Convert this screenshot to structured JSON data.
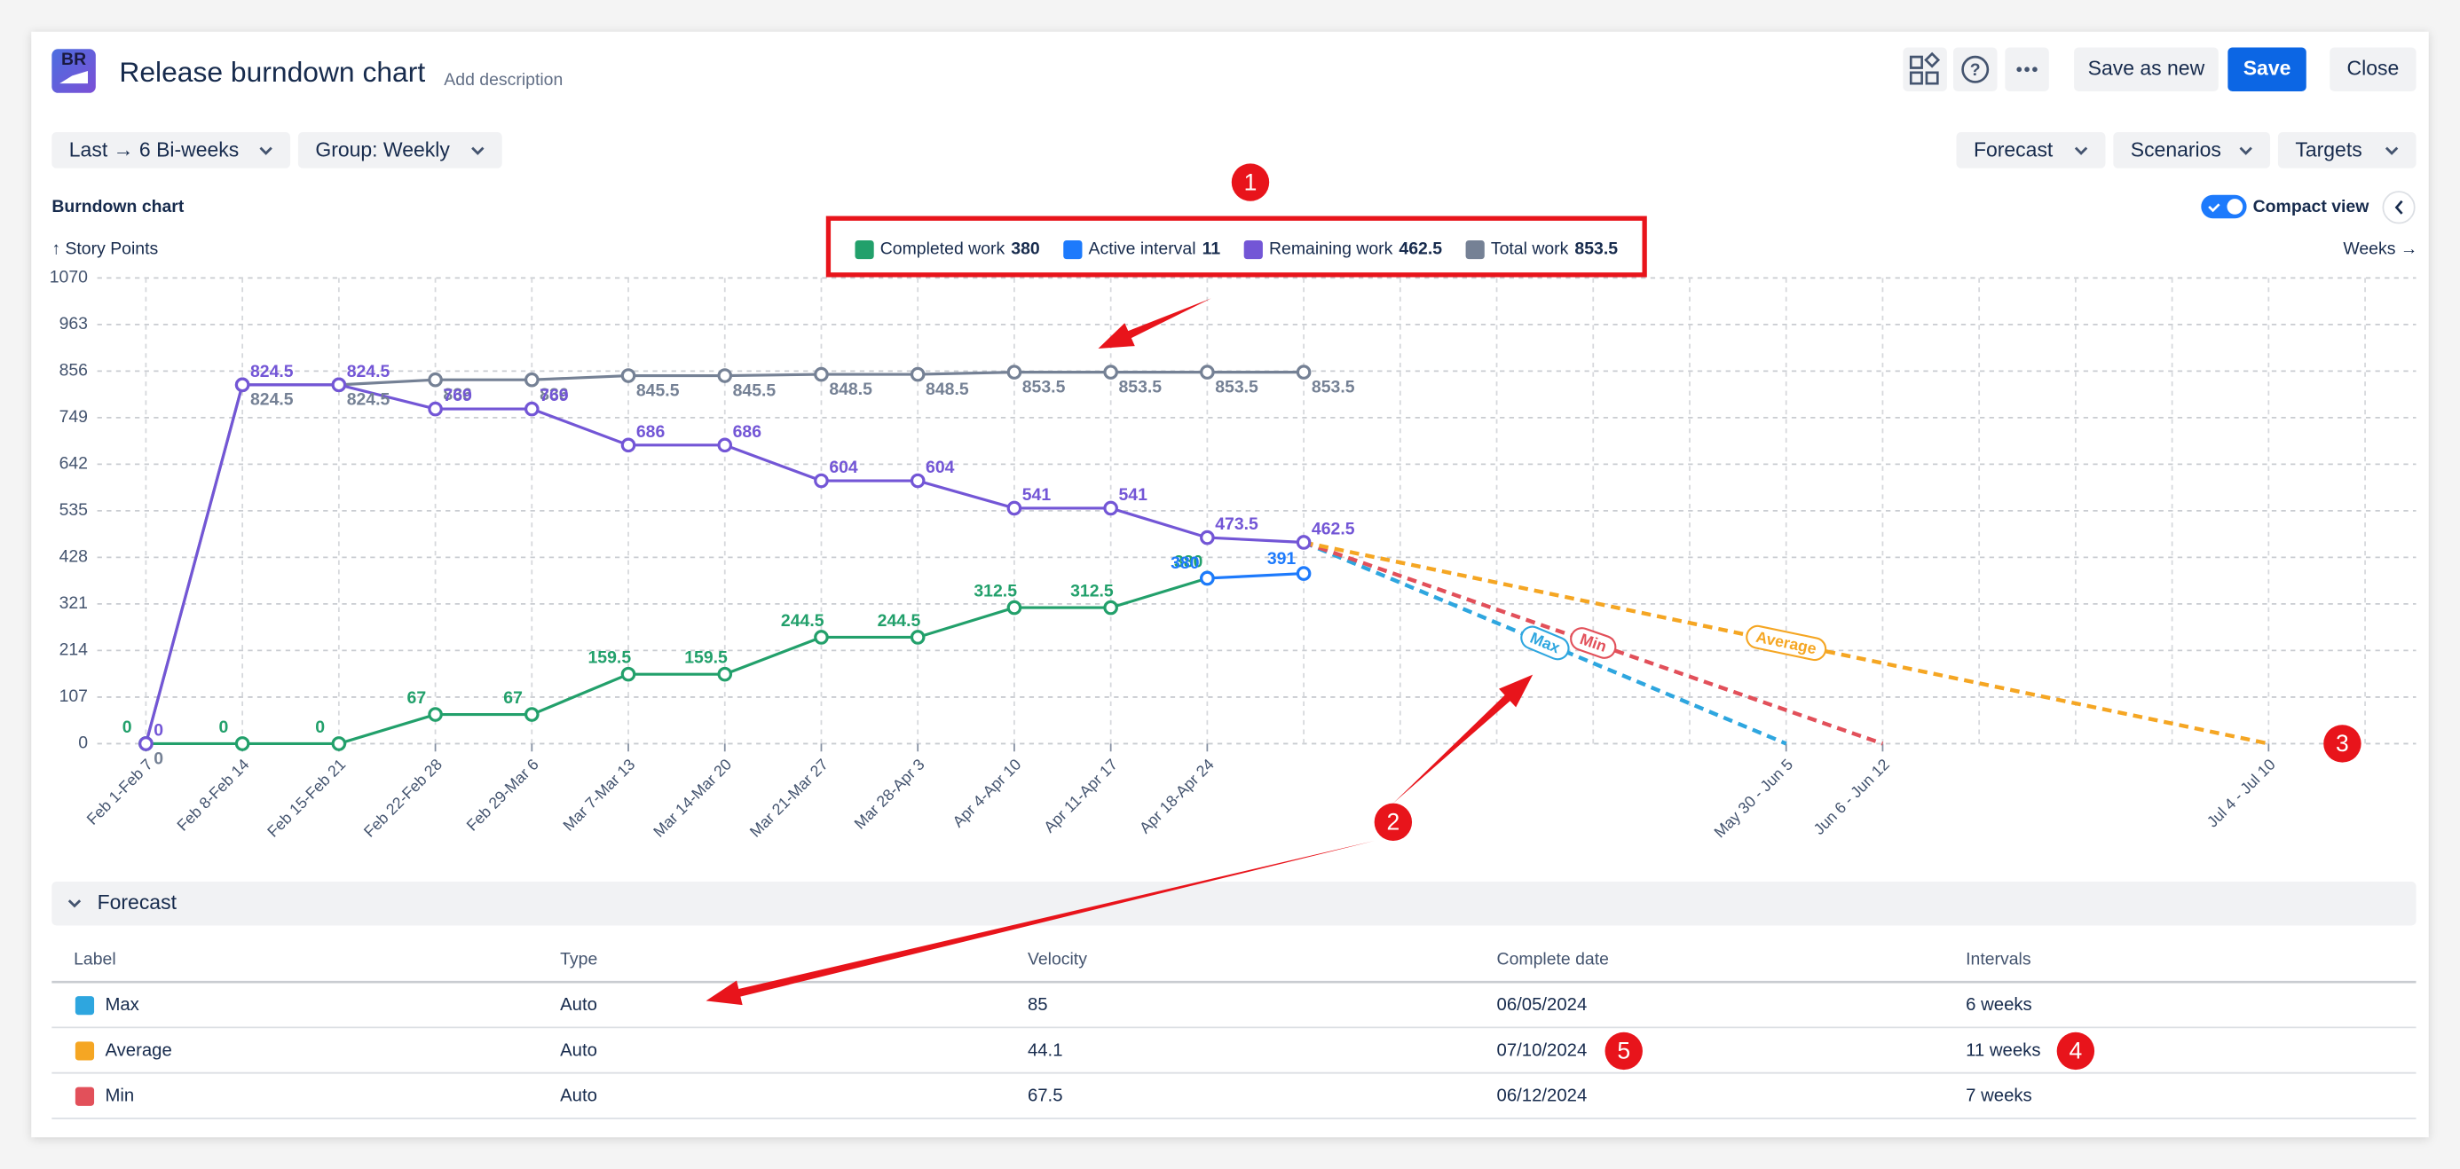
{
  "header": {
    "logo": "BR",
    "title": "Release burndown chart",
    "description": "Add description",
    "buttons": [
      "Save as new",
      "Save",
      "Close"
    ]
  },
  "toolbar": {
    "left": [
      "Last → 6 Bi-weeks",
      "Group: Weekly"
    ],
    "right": [
      "Forecast",
      "Scenarios",
      "Targets"
    ]
  },
  "panel": {
    "title": "Burndown chart",
    "toggle": "Compact view"
  },
  "chart_data": {
    "type": "line",
    "y_label": "↑ Story Points",
    "x_label": "Weeks →",
    "categories": [
      "Feb 1-Feb 7",
      "Feb 8-Feb 14",
      "Feb 15-Feb 21",
      "Feb 22-Feb 28",
      "Feb 29-Mar 6",
      "Mar 7-Mar 13",
      "Mar 14-Mar 20",
      "Mar 21-Mar 27",
      "Mar 28-Apr 3",
      "Apr 4-Apr 10",
      "Apr 11-Apr 17",
      "Apr 18-Apr 24",
      null,
      null,
      null,
      null,
      null,
      "May 30 - Jun 5",
      "Jun 6 - Jun 12",
      null,
      null,
      null,
      "Jul 4 - Jul 10",
      null
    ],
    "series": [
      {
        "name": "Completed work",
        "color": "#22a06b",
        "values": [
          0,
          0,
          0,
          67,
          67,
          159.5,
          159.5,
          244.5,
          244.5,
          312.5,
          312.5,
          380,
          null,
          null,
          null,
          null,
          null,
          null,
          null,
          null,
          null,
          null,
          null,
          null
        ]
      },
      {
        "name": "Active interval",
        "color": "#1d7afc",
        "values": [
          null,
          null,
          null,
          null,
          null,
          null,
          null,
          null,
          null,
          null,
          null,
          380,
          391,
          null,
          null,
          null,
          null,
          null,
          null,
          null,
          null,
          null,
          null,
          null
        ]
      },
      {
        "name": "Remaining work",
        "color": "#7356d6",
        "values": [
          0,
          824.5,
          824.5,
          769,
          769,
          686,
          686,
          604,
          604,
          541,
          541,
          473.5,
          462.5,
          null,
          null,
          null,
          null,
          null,
          null,
          null,
          null,
          null,
          null,
          null
        ]
      },
      {
        "name": "Total work",
        "color": "#758195",
        "values": [
          0,
          824.5,
          824.5,
          836,
          836,
          845.5,
          845.5,
          848.5,
          848.5,
          853.5,
          853.5,
          853.5,
          853.5,
          null,
          null,
          null,
          null,
          null,
          null,
          null,
          null,
          null,
          null,
          null
        ]
      }
    ],
    "legend_values": [
      380,
      11,
      462.5,
      853.5
    ],
    "forecasts": [
      {
        "name": "Max",
        "color": "#2ea6df",
        "values": [
          462.5,
          0
        ],
        "end": "May 30 - Jun 5"
      },
      {
        "name": "Min",
        "color": "#e2505a",
        "values": [
          462.5,
          0
        ],
        "end": "Jun 6 - Jun 12"
      },
      {
        "name": "Average",
        "color": "#f5a623",
        "values": [
          462.5,
          0
        ],
        "end": "Jul 4 - Jul 10"
      }
    ],
    "ylim": [
      0,
      1070
    ],
    "yticks": [
      0,
      107,
      214,
      321,
      428,
      535,
      642,
      749,
      856,
      963,
      1070
    ],
    "grid": true
  },
  "forecast_section": {
    "title": "Forecast",
    "columns": [
      "Label",
      "Type",
      "Velocity",
      "Complete date",
      "Intervals"
    ],
    "rows": [
      [
        "Max",
        "Auto",
        "85",
        "06/05/2024",
        "6 weeks"
      ],
      [
        "Average",
        "Auto",
        "44.1",
        "07/10/2024",
        "11 weeks"
      ],
      [
        "Min",
        "Auto",
        "67.5",
        "06/12/2024",
        "7 weeks"
      ]
    ]
  },
  "annotations": [
    "1",
    "2",
    "3",
    "4",
    "5"
  ]
}
